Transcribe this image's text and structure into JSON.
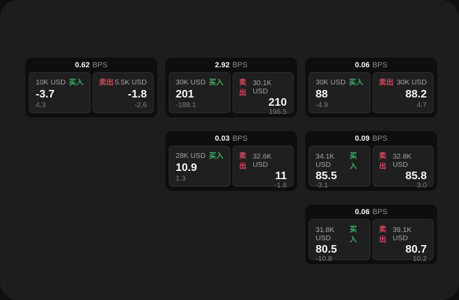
{
  "labels": {
    "buy": "买入",
    "sell": "卖出",
    "bps": "BPS"
  },
  "colors": {
    "page_bg": "#0f0f10",
    "surface_bg": "#1d1d1e",
    "card_bg": "#0e0e0f",
    "panel_bg": "#1f1f20",
    "buy_green": "#3eb061",
    "sell_red": "#d84a5e"
  },
  "cards": [
    {
      "bps": "0.62",
      "buy": {
        "size": "10K USD",
        "value": "-3.7",
        "change": "4.3"
      },
      "sell": {
        "size": "5.5K USD",
        "value": "-1.8",
        "change": "-2.6"
      }
    },
    {
      "bps": "2.92",
      "buy": {
        "size": "30K USD",
        "value": "201",
        "change": "-188.1"
      },
      "sell": {
        "size": "30.1K USD",
        "value": "210",
        "change": "196.5"
      }
    },
    {
      "bps": "0.06",
      "buy": {
        "size": "30K USD",
        "value": "88",
        "change": "-4.9"
      },
      "sell": {
        "size": "30K USD",
        "value": "88.2",
        "change": "4.7"
      }
    },
    {
      "bps": "0.03",
      "buy": {
        "size": "28K USD",
        "value": "10.9",
        "change": "1.3"
      },
      "sell": {
        "size": "32.6K USD",
        "value": "11",
        "change": "-1.8"
      }
    },
    {
      "bps": "0.09",
      "buy": {
        "size": "34.1K USD",
        "value": "85.5",
        "change": "-3.1"
      },
      "sell": {
        "size": "32.8K USD",
        "value": "85.8",
        "change": "3.0"
      }
    },
    {
      "bps": "0.06",
      "buy": {
        "size": "31.8K USD",
        "value": "80.5",
        "change": "-10.8"
      },
      "sell": {
        "size": "39.1K USD",
        "value": "80.7",
        "change": "10.2"
      }
    }
  ]
}
